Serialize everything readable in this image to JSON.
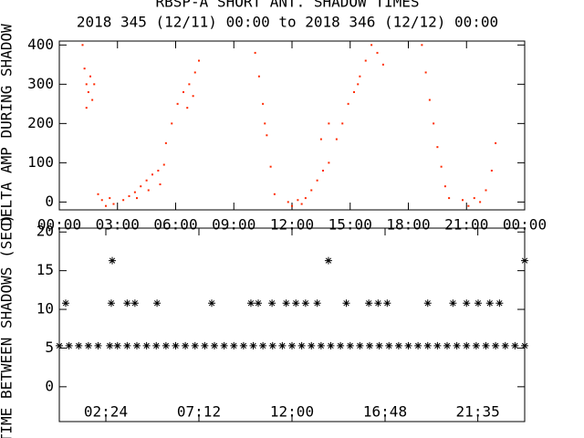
{
  "chart_data": [
    {
      "type": "scatter",
      "title": "RBSP-A SHORT ANT. SHADOW TIMES",
      "subtitle": "2018 345 (12/11) 00:00 to 2018 346 (12/12) 00:00",
      "y_label": "DELTA AMP DURING SHADOW",
      "color": "#ff2a00",
      "marker": "dot",
      "xlim": [
        0,
        24
      ],
      "ylim": [
        -20,
        410
      ],
      "xticks": [
        {
          "value": 0,
          "label": "00:00"
        },
        {
          "value": 3,
          "label": "03:00"
        },
        {
          "value": 6,
          "label": "06:00"
        },
        {
          "value": 9,
          "label": "09:00"
        },
        {
          "value": 12,
          "label": "12:00"
        },
        {
          "value": 15,
          "label": "15:00"
        },
        {
          "value": 18,
          "label": "18:00"
        },
        {
          "value": 21,
          "label": "21:00"
        },
        {
          "value": 24,
          "label": "00:00"
        }
      ],
      "yticks": [
        0,
        100,
        200,
        300,
        400
      ],
      "x": [
        1.2,
        1.3,
        1.4,
        1.5,
        1.6,
        1.7,
        1.8,
        1.4,
        2.0,
        2.2,
        2.4,
        2.6,
        2.8,
        3.3,
        3.6,
        3.9,
        4.2,
        4.5,
        4.8,
        5.1,
        5.4,
        4.0,
        4.6,
        5.2,
        5.5,
        5.8,
        6.1,
        6.4,
        6.7,
        7.0,
        7.2,
        6.6,
        6.9,
        10.1,
        10.3,
        10.5,
        10.7,
        10.9,
        11.1,
        10.6,
        11.8,
        12.0,
        12.3,
        12.5,
        12.7,
        13.0,
        13.3,
        13.6,
        13.9,
        13.5,
        13.9,
        14.3,
        14.6,
        14.9,
        15.2,
        15.5,
        15.8,
        16.1,
        16.4,
        16.7,
        15.4,
        18.7,
        18.9,
        19.1,
        19.3,
        19.5,
        19.7,
        19.9,
        20.1,
        20.8,
        21.1,
        21.4,
        21.7,
        22.0,
        22.3,
        22.5
      ],
      "values": [
        400,
        340,
        300,
        280,
        320,
        260,
        300,
        240,
        20,
        5,
        -10,
        10,
        -5,
        5,
        15,
        25,
        40,
        55,
        70,
        80,
        95,
        10,
        30,
        45,
        150,
        200,
        250,
        280,
        300,
        330,
        360,
        240,
        270,
        380,
        320,
        250,
        170,
        90,
        20,
        200,
        0,
        -10,
        5,
        -5,
        10,
        30,
        55,
        80,
        100,
        160,
        200,
        160,
        200,
        250,
        280,
        320,
        360,
        400,
        380,
        350,
        300,
        400,
        330,
        260,
        200,
        140,
        90,
        40,
        10,
        5,
        -10,
        10,
        0,
        30,
        80,
        150
      ]
    },
    {
      "type": "scatter",
      "y_label": "TIME BETWEEN SHADOWS (SEC)",
      "color": "#000000",
      "marker": "asterisk",
      "xlim": [
        0,
        24
      ],
      "ylim": [
        -4.5,
        20.5
      ],
      "xticks": [
        {
          "value": 2.4,
          "label": "02:24"
        },
        {
          "value": 7.2,
          "label": "07:12"
        },
        {
          "value": 12,
          "label": "12:00"
        },
        {
          "value": 16.8,
          "label": "16:48"
        },
        {
          "value": 21.583,
          "label": "21:35"
        }
      ],
      "yticks": [
        0,
        5,
        10,
        15,
        20
      ],
      "x": [
        0.0,
        0.5,
        1.0,
        1.5,
        2.0,
        2.6,
        3.0,
        3.5,
        4.0,
        4.5,
        5.0,
        5.5,
        6.0,
        6.5,
        7.0,
        7.5,
        8.0,
        8.5,
        9.0,
        9.5,
        10.0,
        10.5,
        11.0,
        11.5,
        12.0,
        12.5,
        13.0,
        13.5,
        14.0,
        14.5,
        15.0,
        15.5,
        16.0,
        16.5,
        17.0,
        17.5,
        18.0,
        18.5,
        19.0,
        19.5,
        20.0,
        20.5,
        21.0,
        21.5,
        22.0,
        22.5,
        23.0,
        23.5,
        24.0,
        0.33,
        2.68,
        3.5,
        3.9,
        5.04,
        7.86,
        9.88,
        10.26,
        10.97,
        11.7,
        12.2,
        12.7,
        13.3,
        14.8,
        15.96,
        16.44,
        16.91,
        19.0,
        20.3,
        21.0,
        21.6,
        22.2,
        22.7,
        2.73,
        13.88,
        24.0
      ],
      "values": [
        5.3,
        5.3,
        5.3,
        5.3,
        5.3,
        5.3,
        5.3,
        5.3,
        5.3,
        5.3,
        5.3,
        5.3,
        5.3,
        5.3,
        5.3,
        5.3,
        5.3,
        5.3,
        5.3,
        5.3,
        5.3,
        5.3,
        5.3,
        5.3,
        5.3,
        5.3,
        5.3,
        5.3,
        5.3,
        5.3,
        5.3,
        5.3,
        5.3,
        5.3,
        5.3,
        5.3,
        5.3,
        5.3,
        5.3,
        5.3,
        5.3,
        5.3,
        5.3,
        5.3,
        5.3,
        5.3,
        5.3,
        5.3,
        5.3,
        10.8,
        10.8,
        10.8,
        10.8,
        10.8,
        10.8,
        10.8,
        10.8,
        10.8,
        10.8,
        10.8,
        10.8,
        10.8,
        10.8,
        10.8,
        10.8,
        10.8,
        10.8,
        10.8,
        10.8,
        10.8,
        10.8,
        10.8,
        16.3,
        16.3,
        16.3
      ]
    }
  ]
}
